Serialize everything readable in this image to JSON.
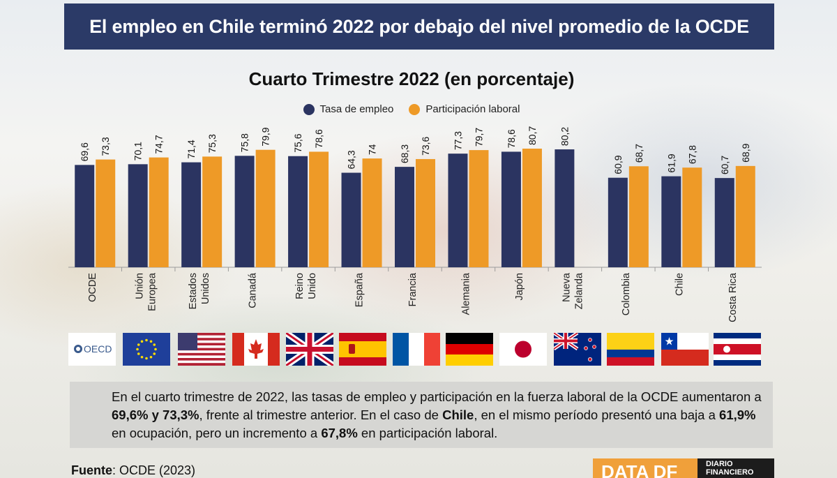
{
  "header": {
    "title": "El empleo en Chile terminó 2022 por debajo del nivel promedio de la OCDE"
  },
  "chart_data": {
    "type": "bar",
    "title": "Cuarto Trimestre 2022 (en porcentaje)",
    "categories": [
      "OCDE",
      "Unión\nEuropea",
      "Estados\nUnidos",
      "Canadá",
      "Reino\nUnido",
      "España",
      "Francia",
      "Alemania",
      "Japón",
      "Nueva\nZelanda",
      "Colombia",
      "Chile",
      "Costa Rica"
    ],
    "series": [
      {
        "name": "Tasa de empleo",
        "color": "#2b3461",
        "values": [
          69.6,
          70.1,
          71.4,
          75.8,
          75.6,
          64.3,
          68.3,
          77.3,
          78.6,
          80.2,
          60.9,
          61.9,
          60.7
        ],
        "labels": [
          "69,6",
          "70,1",
          "71,4",
          "75,8",
          "75,6",
          "64,3",
          "68,3",
          "77,3",
          "78,6",
          "80,2",
          "60,9",
          "61,9",
          "60,7"
        ]
      },
      {
        "name": "Participación laboral",
        "color": "#ee9a27",
        "values": [
          73.3,
          74.7,
          75.3,
          79.9,
          78.6,
          74,
          73.6,
          79.7,
          80.7,
          null,
          68.7,
          67.8,
          68.9
        ],
        "labels": [
          "73,3",
          "74,7",
          "75,3",
          "79,9",
          "78,6",
          "74",
          "73,6",
          "79,7",
          "80,7",
          "",
          "68,7",
          "67,8",
          "68,9"
        ]
      }
    ],
    "ylim": [
      0,
      85
    ],
    "grid": false,
    "legend": "top-center"
  },
  "flags": [
    "oecd-logo",
    "eu-flag",
    "usa-flag",
    "canada-flag",
    "uk-flag",
    "spain-flag",
    "france-flag",
    "germany-flag",
    "japan-flag",
    "new-zealand-flag",
    "colombia-flag",
    "chile-flag",
    "costa-rica-flag"
  ],
  "oecd_logo_text": "OECD",
  "summary": {
    "p1": "En el cuarto trimestre de 2022, las tasas de empleo y participación en la fuerza laboral de la OCDE aumentaron a ",
    "b1": "69,6% y 73,3%",
    "p2": ", frente al trimestre anterior. En el caso de ",
    "b2": "Chile",
    "p3": ", en el mismo período presentó una baja a ",
    "b3": "61,9%",
    "p4": " en ocupación, pero un incremento a ",
    "b4": "67,8%",
    "p5": " en participación laboral."
  },
  "source": {
    "label": "Fuente",
    "text": ": OCDE (2023)"
  },
  "logo": {
    "left": "DATA DF",
    "right_line1": "DIARIO",
    "right_line2": "FINANCIERO"
  }
}
